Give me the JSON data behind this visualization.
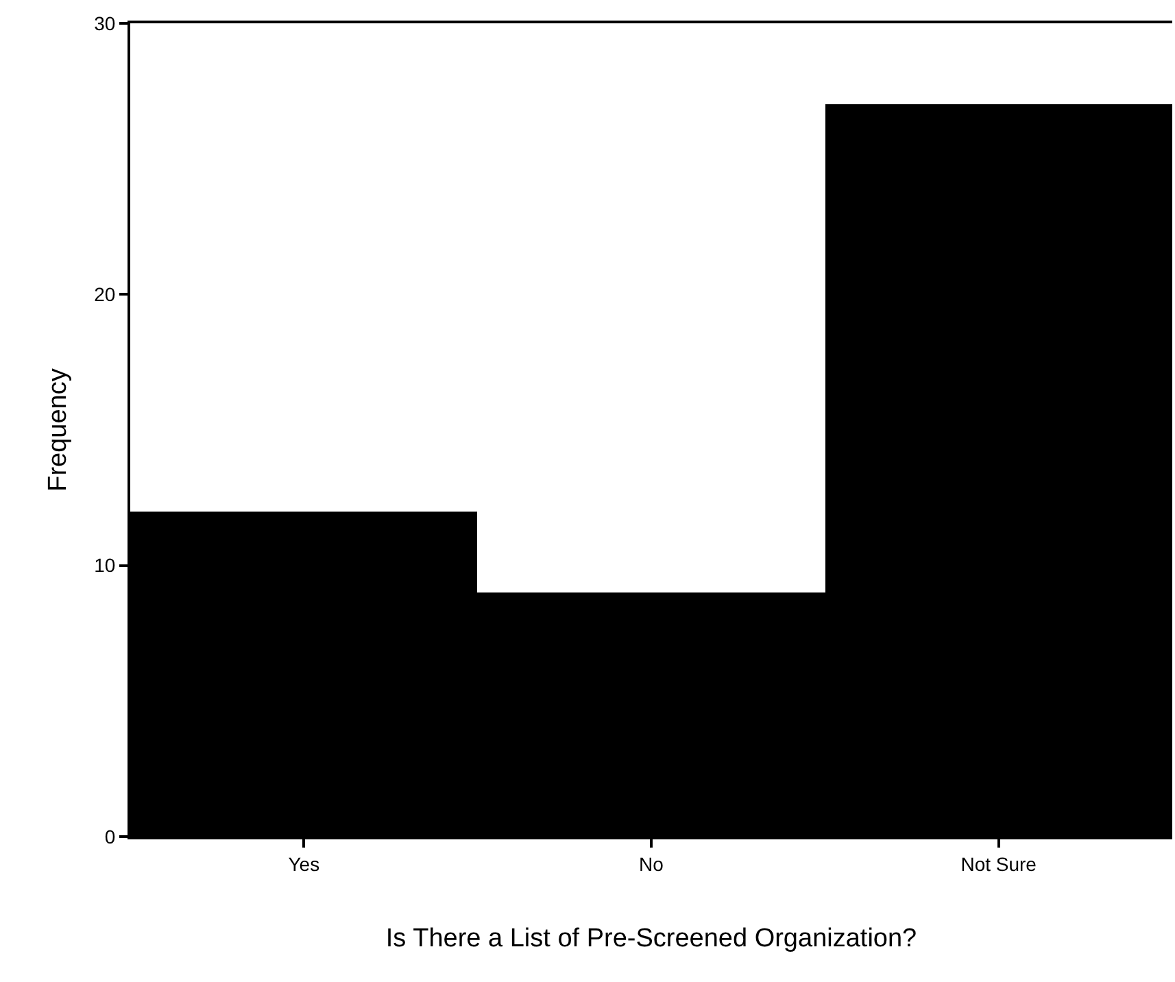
{
  "chart_data": {
    "type": "bar",
    "xlabel": "Is There a List of Pre-Screened Organization?",
    "ylabel": "Frequency",
    "categories": [
      "Yes",
      "No",
      "Not Sure"
    ],
    "values": [
      12,
      9,
      27
    ],
    "color": "#000000",
    "ylim": [
      0,
      30
    ],
    "yticks": [
      0,
      10,
      20,
      30
    ]
  }
}
